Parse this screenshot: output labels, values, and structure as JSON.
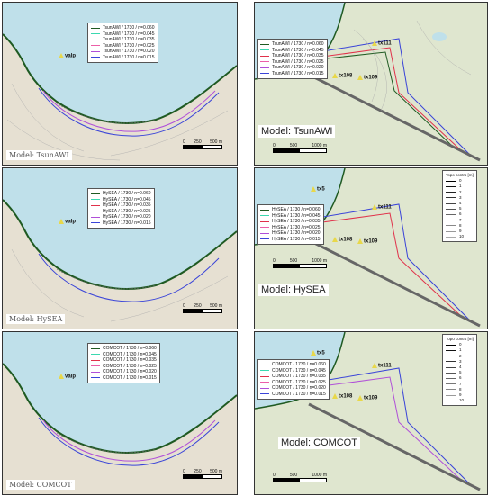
{
  "legend_colors": [
    "#1f5a22",
    "#3bd9b0",
    "#e0314a",
    "#ec5fa8",
    "#b04fd8",
    "#3a44d8"
  ],
  "panels": [
    {
      "side": "left",
      "label": "Model: TsunAWI",
      "legend": [
        "TsunAWI / 1730 / n=0.060",
        "TsunAWI / 1730 / n=0.045",
        "TsunAWI / 1730 / n=0.035",
        "TsunAWI / 1730 / n=0.025",
        "TsunAWI / 1730 / n=0.020",
        "TsunAWI / 1730 / n=0.015"
      ],
      "marker": "valp",
      "scale": [
        "0",
        "250",
        "500 m"
      ]
    },
    {
      "side": "right",
      "label": "Model: TsunAWI",
      "legend": [
        "TsunAWI / 1730 / n=0.060",
        "TsunAWI / 1730 / n=0.045",
        "TsunAWI / 1730 / n=0.035",
        "TsunAWI / 1730 / n=0.025",
        "TsunAWI / 1730 / n=0.020",
        "TsunAWI / 1730 / n=0.015"
      ],
      "markers": [
        "tx111",
        "tx108",
        "tx109"
      ],
      "scale": [
        "0",
        "500",
        "1000 m"
      ]
    },
    {
      "side": "left",
      "label": "Model: HySEA",
      "legend": [
        "HySEA / 1730 / n=0.060",
        "HySEA / 1730 / n=0.045",
        "HySEA / 1730 / n=0.035",
        "HySEA / 1730 / n=0.025",
        "HySEA / 1730 / n=0.020",
        "HySEA / 1730 / n=0.015"
      ],
      "marker": "valp",
      "scale": [
        "0",
        "250",
        "500 m"
      ]
    },
    {
      "side": "right",
      "label": "Model: HySEA",
      "legend": [
        "HySEA / 1730 / n=0.060",
        "HySEA / 1730 / n=0.045",
        "HySEA / 1730 / n=0.035",
        "HySEA / 1730 / n=0.025",
        "HySEA / 1730 / n=0.020",
        "HySEA / 1730 / n=0.015"
      ],
      "markers": [
        "tx5",
        "tx111",
        "tx108",
        "tx109"
      ],
      "scale": [
        "0",
        "500",
        "1000 m"
      ]
    },
    {
      "side": "left",
      "label": "Model: COMCOT",
      "legend": [
        "COMCOT / 1730 / n=0.060",
        "COMCOT / 1730 / n=0.045",
        "COMCOT / 1730 / n=0.035",
        "COMCOT / 1730 / n=0.025",
        "COMCOT / 1730 / n=0.020",
        "COMCOT / 1730 / n=0.015"
      ],
      "marker": "valp",
      "scale": [
        "0",
        "250",
        "500 m"
      ]
    },
    {
      "side": "right",
      "label": "Model: COMCOT",
      "legend": [
        "COMCOT / 1730 / n=0.060",
        "COMCOT / 1730 / n=0.045",
        "COMCOT / 1730 / n=0.035",
        "COMCOT / 1730 / n=0.025",
        "COMCOT / 1730 / n=0.020",
        "COMCOT / 1730 / n=0.015"
      ],
      "markers": [
        "tx5",
        "tx111",
        "tx108",
        "tx109"
      ],
      "scale": [
        "0",
        "500",
        "1000 m"
      ]
    }
  ],
  "topo_legend": {
    "title": "Topo contrs [m]",
    "levels": [
      "0",
      "1",
      "2",
      "3",
      "4",
      "5",
      "6",
      "7",
      "8",
      "9",
      "10"
    ]
  }
}
